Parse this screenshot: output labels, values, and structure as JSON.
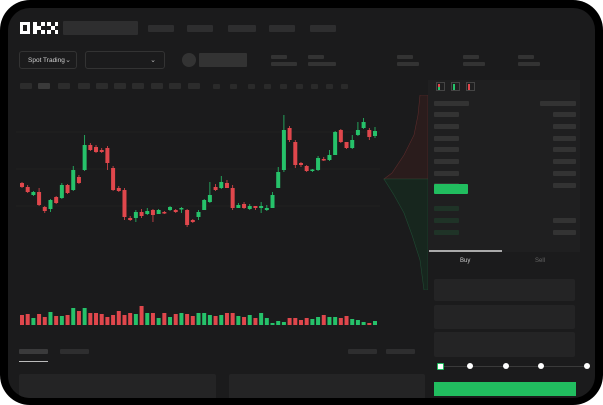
{
  "app": {
    "logo_text": "OKX"
  },
  "header": {
    "market_selector": {
      "label": "Spot Trading",
      "icon": "chevron-down-icon"
    },
    "pair_selector": {
      "icon": "chevron-down-icon"
    }
  },
  "orderbook": {
    "view_icons": [
      "orderbook-both-icon",
      "orderbook-bids-icon",
      "orderbook-asks-icon"
    ]
  },
  "trade": {
    "tabs": [
      {
        "label": "Buy",
        "active": true
      },
      {
        "label": "Sell",
        "active": false
      }
    ],
    "slider_value": 0,
    "slider_steps": 5
  },
  "colors": {
    "up": "#26c26a",
    "down": "#e0474c",
    "background": "#1b1b1c",
    "accent": "#21bd5f"
  },
  "chart_data": {
    "type": "candlestick",
    "title": "",
    "ylim": [
      65,
      200
    ],
    "grid": true,
    "candles": [
      [
        117,
        113,
        118,
        112
      ],
      [
        113,
        108,
        115,
        107
      ],
      [
        105,
        108,
        109,
        104
      ],
      [
        108,
        95,
        112,
        94
      ],
      [
        93,
        89,
        94,
        87
      ],
      [
        91,
        100,
        101,
        88
      ],
      [
        103,
        97,
        104,
        96
      ],
      [
        102,
        115,
        117,
        101
      ],
      [
        115,
        107,
        116,
        106
      ],
      [
        110,
        130,
        134,
        109
      ],
      [
        123,
        117,
        125,
        116
      ],
      [
        130,
        155,
        165,
        129
      ],
      [
        155,
        150,
        157,
        149
      ],
      [
        153,
        148,
        155,
        147
      ],
      [
        150,
        148,
        152,
        147
      ],
      [
        152,
        137,
        154,
        130
      ],
      [
        132,
        110,
        134,
        109
      ],
      [
        112,
        109,
        114,
        108
      ],
      [
        110,
        83,
        112,
        80
      ],
      [
        82,
        80,
        84,
        79
      ],
      [
        82,
        88,
        90,
        78
      ],
      [
        88,
        84,
        91,
        82
      ],
      [
        86,
        89,
        92,
        85
      ],
      [
        90,
        85,
        91,
        78
      ],
      [
        86,
        90,
        91,
        87
      ],
      [
        88,
        87,
        89,
        86
      ],
      [
        90,
        93,
        94,
        89
      ],
      [
        90,
        88,
        91,
        87
      ],
      [
        91,
        92,
        93,
        87
      ],
      [
        90,
        75,
        91,
        73
      ],
      [
        80,
        78,
        81,
        77
      ],
      [
        83,
        88,
        90,
        80
      ],
      [
        90,
        100,
        101,
        90
      ],
      [
        98,
        105,
        118,
        97
      ],
      [
        113,
        110,
        116,
        109
      ],
      [
        112,
        118,
        124,
        111
      ],
      [
        117,
        112,
        120,
        112
      ],
      [
        112,
        92,
        115,
        90
      ],
      [
        92,
        95,
        97,
        92
      ],
      [
        96,
        92,
        98,
        91
      ],
      [
        91,
        94,
        96,
        90
      ],
      [
        94,
        92,
        94,
        90
      ],
      [
        92,
        94,
        98,
        87
      ],
      [
        90,
        92,
        95,
        89
      ],
      [
        92,
        105,
        108,
        92
      ],
      [
        112,
        128,
        133,
        112
      ],
      [
        130,
        170,
        185,
        128
      ],
      [
        172,
        160,
        174,
        158
      ],
      [
        158,
        135,
        160,
        132
      ],
      [
        137,
        135,
        138,
        133
      ],
      [
        134,
        129,
        135,
        128
      ],
      [
        130,
        130.5,
        131,
        128
      ],
      [
        130,
        142,
        144,
        129
      ],
      [
        141,
        140,
        143,
        139
      ],
      [
        140,
        145,
        150,
        139
      ],
      [
        145,
        168,
        169,
        145
      ],
      [
        170,
        158,
        171,
        157
      ],
      [
        158,
        152,
        158,
        151
      ],
      [
        152,
        160,
        165,
        151
      ],
      [
        165,
        170,
        178,
        164
      ],
      [
        172,
        178,
        182,
        171
      ],
      [
        170,
        163,
        172,
        160
      ],
      [
        164,
        169,
        173,
        162
      ]
    ],
    "volume": [
      10,
      11,
      7,
      11,
      8,
      13,
      9,
      9,
      10,
      17,
      14,
      17,
      12,
      12,
      11,
      8,
      10,
      14,
      10,
      12,
      11,
      19,
      12,
      12,
      7,
      12,
      8,
      11,
      12,
      11,
      9,
      12,
      12,
      10,
      9,
      10,
      12,
      12,
      9,
      8,
      10,
      7,
      12,
      7,
      2,
      4,
      3,
      7,
      7,
      5,
      7,
      6,
      8,
      10,
      8,
      8,
      7,
      9,
      6,
      5,
      3,
      2,
      4
    ],
    "candle_fields": [
      "open",
      "close",
      "high",
      "low"
    ]
  }
}
